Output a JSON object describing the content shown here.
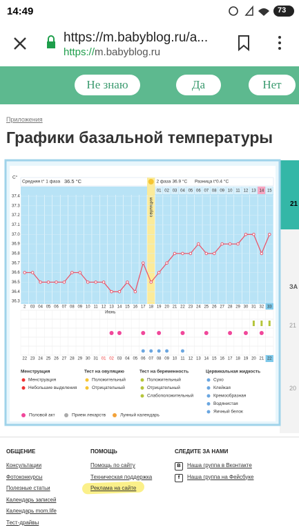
{
  "status_bar": {
    "time": "14:49",
    "battery": "73"
  },
  "browser": {
    "url": "https://m.babyblog.ru/a...",
    "scheme": "https://",
    "host": "m.babyblog.ru"
  },
  "banner": {
    "buttons": [
      "Не знаю",
      "Да",
      "Нет"
    ]
  },
  "breadcrumb": "Приложения",
  "page_title": "Графики базальной температуры",
  "sidebar": {
    "top": "21",
    "mid": "ЗА",
    "low": "21",
    "bottom": "20"
  },
  "chart_data": {
    "type": "line",
    "y_label": "C°",
    "header": {
      "phase1": "Средняя t° 1 фаза",
      "phase1_value": "36.5 °C",
      "ovulation": "овуляция",
      "phase2": "2 фаза",
      "phase2_value": "36.9 °C",
      "diff": "Разница t°",
      "diff_value": "0.4 °C"
    },
    "categories": [
      "2",
      "03",
      "04",
      "05",
      "06",
      "07",
      "08",
      "09",
      "10",
      "11",
      "12",
      "13",
      "14",
      "15",
      "16",
      "17",
      "18",
      "19",
      "20",
      "21",
      "22",
      "23",
      "24",
      "25",
      "26",
      "27",
      "28",
      "29",
      "30",
      "31",
      "32",
      "33"
    ],
    "values": [
      36.6,
      36.6,
      36.5,
      36.5,
      36.5,
      36.5,
      36.6,
      36.6,
      36.5,
      36.5,
      36.5,
      36.4,
      36.4,
      36.5,
      36.4,
      36.7,
      36.5,
      36.6,
      36.7,
      36.8,
      36.8,
      36.8,
      36.9,
      36.8,
      36.8,
      36.9,
      36.9,
      36.9,
      37.0,
      37.0,
      36.8,
      37.0
    ],
    "color": "#e8576c",
    "ylim": [
      36.3,
      37.4
    ],
    "yticks": [
      36.3,
      36.4,
      36.5,
      36.6,
      36.7,
      36.8,
      36.9,
      {
        "value": 37,
        "label": "37.0"
      },
      37.1,
      37.2,
      37.3,
      37.4
    ],
    "phase2_days": [
      "01",
      "02",
      "03",
      "04",
      "05",
      "06",
      "07",
      "08",
      "09",
      "10",
      "11",
      "12",
      "13",
      "14",
      "15"
    ],
    "month": "Июнь",
    "dates": [
      "22",
      "23",
      "24",
      "25",
      "26",
      "27",
      "28",
      "29",
      "30",
      "31",
      "01",
      "02",
      "03",
      "04",
      "05",
      "06",
      "07",
      "08",
      "09",
      "10",
      "11",
      "12",
      "13",
      "14",
      "15",
      "16",
      "17",
      "18",
      "19",
      "20",
      "21",
      "22"
    ],
    "legend": [
      {
        "title": "Менструация",
        "items": [
          "Менструация",
          "Небольшие выделения"
        ]
      },
      {
        "title": "Тест на овуляцию",
        "items": [
          "Положительный",
          "Отрицательный"
        ]
      },
      {
        "title": "Тест на беременность",
        "items": [
          "Положительный",
          "Отрицательный",
          "Слабоположительный"
        ]
      },
      {
        "title": "Цервикальная жидкость",
        "items": [
          "Сухо",
          "Клейкая",
          "Кремообразная",
          "Водянистая",
          "Яичный белок"
        ]
      }
    ],
    "extra_legend": [
      "Половой акт",
      "Прием лекарств",
      "Лунный календарь"
    ]
  },
  "footer": [
    {
      "title": "ОБЩЕНИЕ",
      "links": [
        "Консультации",
        "Фотоконкурсы",
        "Полезные статьи",
        "Календарь записей",
        "Календарь mom.life",
        "Тест-драйвы"
      ]
    },
    {
      "title": "ПОМОЩЬ",
      "links": [
        "Помощь по сайту",
        "Техническая поддержка",
        "Реклама на сайте"
      ]
    },
    {
      "title": "СЛЕДИТЕ ЗА НАМИ",
      "links": [
        "Наша группа в Вконтакте",
        "Наша группа на Фейсбуке"
      ],
      "icons": [
        "В",
        "f"
      ]
    }
  ]
}
